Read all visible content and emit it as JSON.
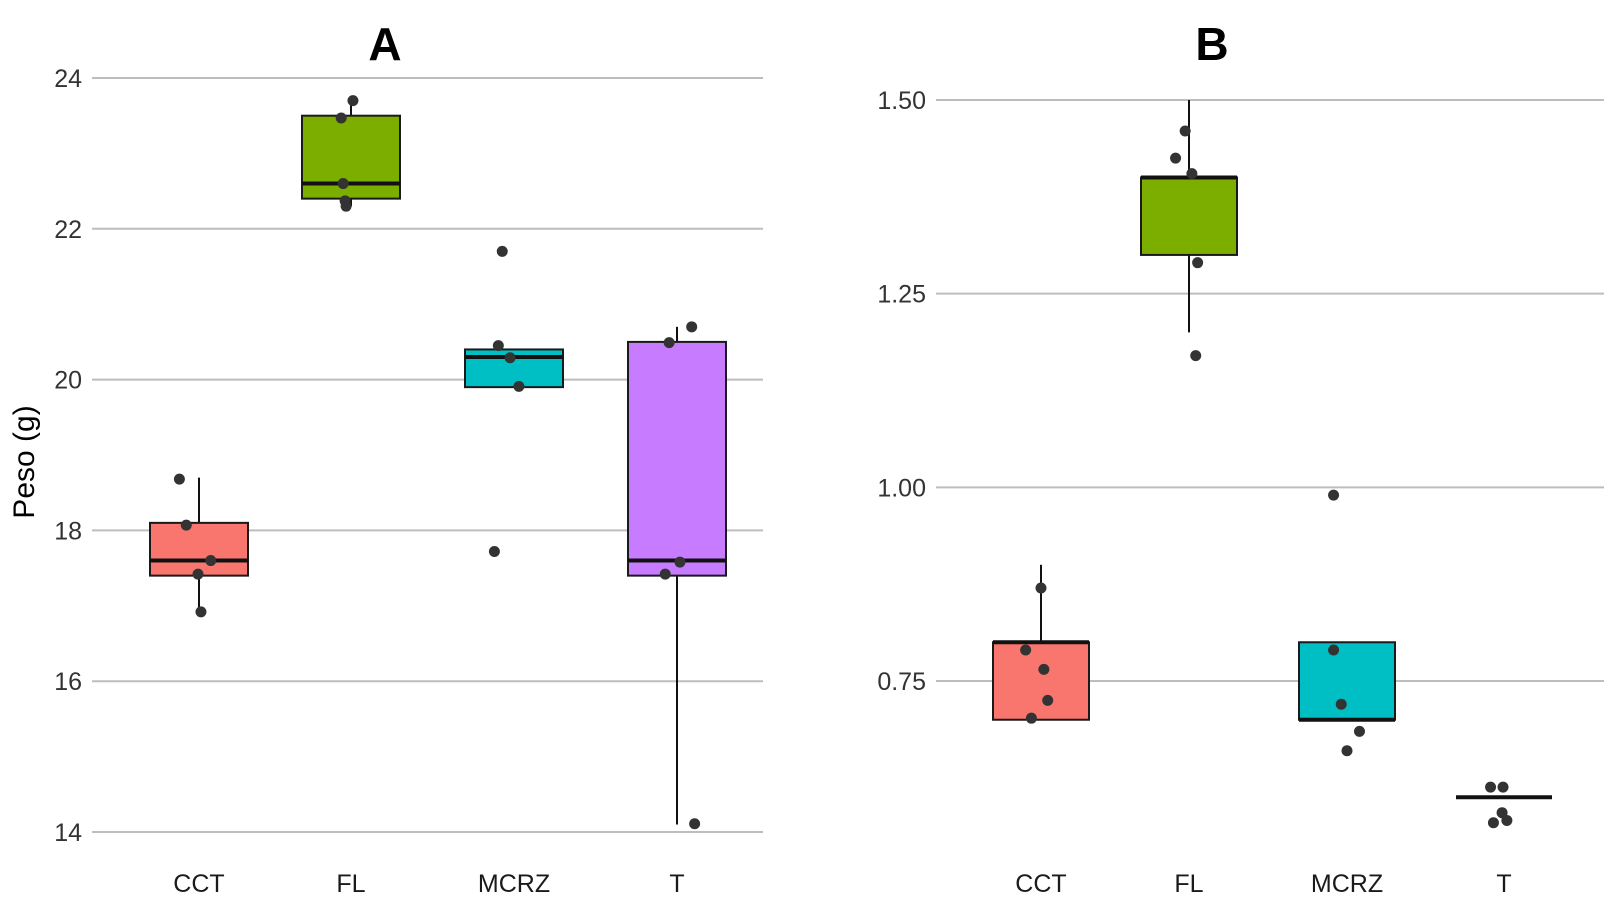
{
  "chart_data": [
    {
      "type": "box",
      "title": "A",
      "ylabel": "Peso (g)",
      "xlabel": "",
      "ylim": [
        13.85,
        24.6
      ],
      "yticks": [
        14,
        16,
        18,
        20,
        22,
        24
      ],
      "ytick_labels": [
        "14",
        "16",
        "18",
        "20",
        "22",
        "24"
      ],
      "categories": [
        "CCT",
        "FL",
        "MCRZ",
        "T"
      ],
      "groups": [
        {
          "name": "CCT",
          "color": "#F8766D",
          "q1": 17.4,
          "median": 17.6,
          "q3": 18.1,
          "whisker_low": 16.9,
          "whisker_high": 18.7,
          "points": [
            {
              "x": -0.2,
              "y": 18.68
            },
            {
              "x": -0.13,
              "y": 18.07
            },
            {
              "x": 0.12,
              "y": 17.6
            },
            {
              "x": -0.01,
              "y": 17.42
            },
            {
              "x": 0.02,
              "y": 16.92
            }
          ]
        },
        {
          "name": "FL",
          "color": "#7CAE00",
          "q1": 22.4,
          "median": 22.6,
          "q3": 23.5,
          "whisker_low": 22.3,
          "whisker_high": 23.7,
          "points": [
            {
              "x": 0.02,
              "y": 23.7
            },
            {
              "x": -0.1,
              "y": 23.47
            },
            {
              "x": -0.08,
              "y": 22.6
            },
            {
              "x": -0.06,
              "y": 22.37
            },
            {
              "x": -0.05,
              "y": 22.3
            }
          ]
        },
        {
          "name": "MCRZ",
          "color": "#00BFC4",
          "q1": 19.9,
          "median": 20.3,
          "q3": 20.4,
          "whisker_low": 19.9,
          "whisker_high": 20.4,
          "points": [
            {
              "x": -0.12,
              "y": 21.7
            },
            {
              "x": -0.16,
              "y": 20.45
            },
            {
              "x": -0.04,
              "y": 20.29
            },
            {
              "x": 0.05,
              "y": 19.91
            },
            {
              "x": -0.2,
              "y": 17.72
            }
          ]
        },
        {
          "name": "T",
          "color": "#C77CFF",
          "q1": 17.4,
          "median": 17.6,
          "q3": 20.5,
          "whisker_low": 14.1,
          "whisker_high": 20.7,
          "points": [
            {
              "x": 0.15,
              "y": 20.7
            },
            {
              "x": -0.08,
              "y": 20.49
            },
            {
              "x": 0.03,
              "y": 17.58
            },
            {
              "x": -0.12,
              "y": 17.42
            },
            {
              "x": 0.18,
              "y": 14.11
            }
          ]
        }
      ]
    },
    {
      "type": "box",
      "title": "B",
      "ylabel": "",
      "xlabel": "",
      "ylim": [
        0.535,
        1.565
      ],
      "yticks": [
        0.75,
        1.0,
        1.25,
        1.5
      ],
      "ytick_labels": [
        "0.75",
        "1.00",
        "1.25",
        "1.50"
      ],
      "categories": [
        "CCT",
        "FL",
        "MCRZ",
        "T"
      ],
      "groups": [
        {
          "name": "CCT",
          "color": "#F8766D",
          "q1": 0.7,
          "median": 0.8,
          "q3": 0.8,
          "whisker_low": 0.7,
          "whisker_high": 0.9,
          "points": [
            {
              "x": 0.0,
              "y": 0.87
            },
            {
              "x": -0.16,
              "y": 0.79
            },
            {
              "x": 0.03,
              "y": 0.765
            },
            {
              "x": 0.07,
              "y": 0.725
            },
            {
              "x": -0.1,
              "y": 0.702
            }
          ]
        },
        {
          "name": "FL",
          "color": "#7CAE00",
          "q1": 1.3,
          "median": 1.4,
          "q3": 1.4,
          "whisker_low": 1.2,
          "whisker_high": 1.5,
          "points": [
            {
              "x": -0.04,
              "y": 1.46
            },
            {
              "x": -0.14,
              "y": 1.425
            },
            {
              "x": 0.03,
              "y": 1.405
            },
            {
              "x": 0.09,
              "y": 1.29
            },
            {
              "x": 0.07,
              "y": 1.17
            }
          ]
        },
        {
          "name": "MCRZ",
          "color": "#00BFC4",
          "q1": 0.7,
          "median": 0.7,
          "q3": 0.8,
          "whisker_low": 0.7,
          "whisker_high": 0.8,
          "points": [
            {
              "x": -0.14,
              "y": 0.99
            },
            {
              "x": -0.14,
              "y": 0.79
            },
            {
              "x": -0.06,
              "y": 0.72
            },
            {
              "x": 0.13,
              "y": 0.685
            },
            {
              "x": 0.0,
              "y": 0.66
            }
          ]
        },
        {
          "name": "T",
          "color": "#C77CFF",
          "q1": 0.6,
          "median": 0.6,
          "q3": 0.6,
          "whisker_low": 0.6,
          "whisker_high": 0.6,
          "points": [
            {
              "x": -0.14,
              "y": 0.613
            },
            {
              "x": -0.01,
              "y": 0.613
            },
            {
              "x": -0.02,
              "y": 0.58
            },
            {
              "x": -0.11,
              "y": 0.567
            },
            {
              "x": 0.03,
              "y": 0.57
            }
          ]
        }
      ]
    }
  ]
}
